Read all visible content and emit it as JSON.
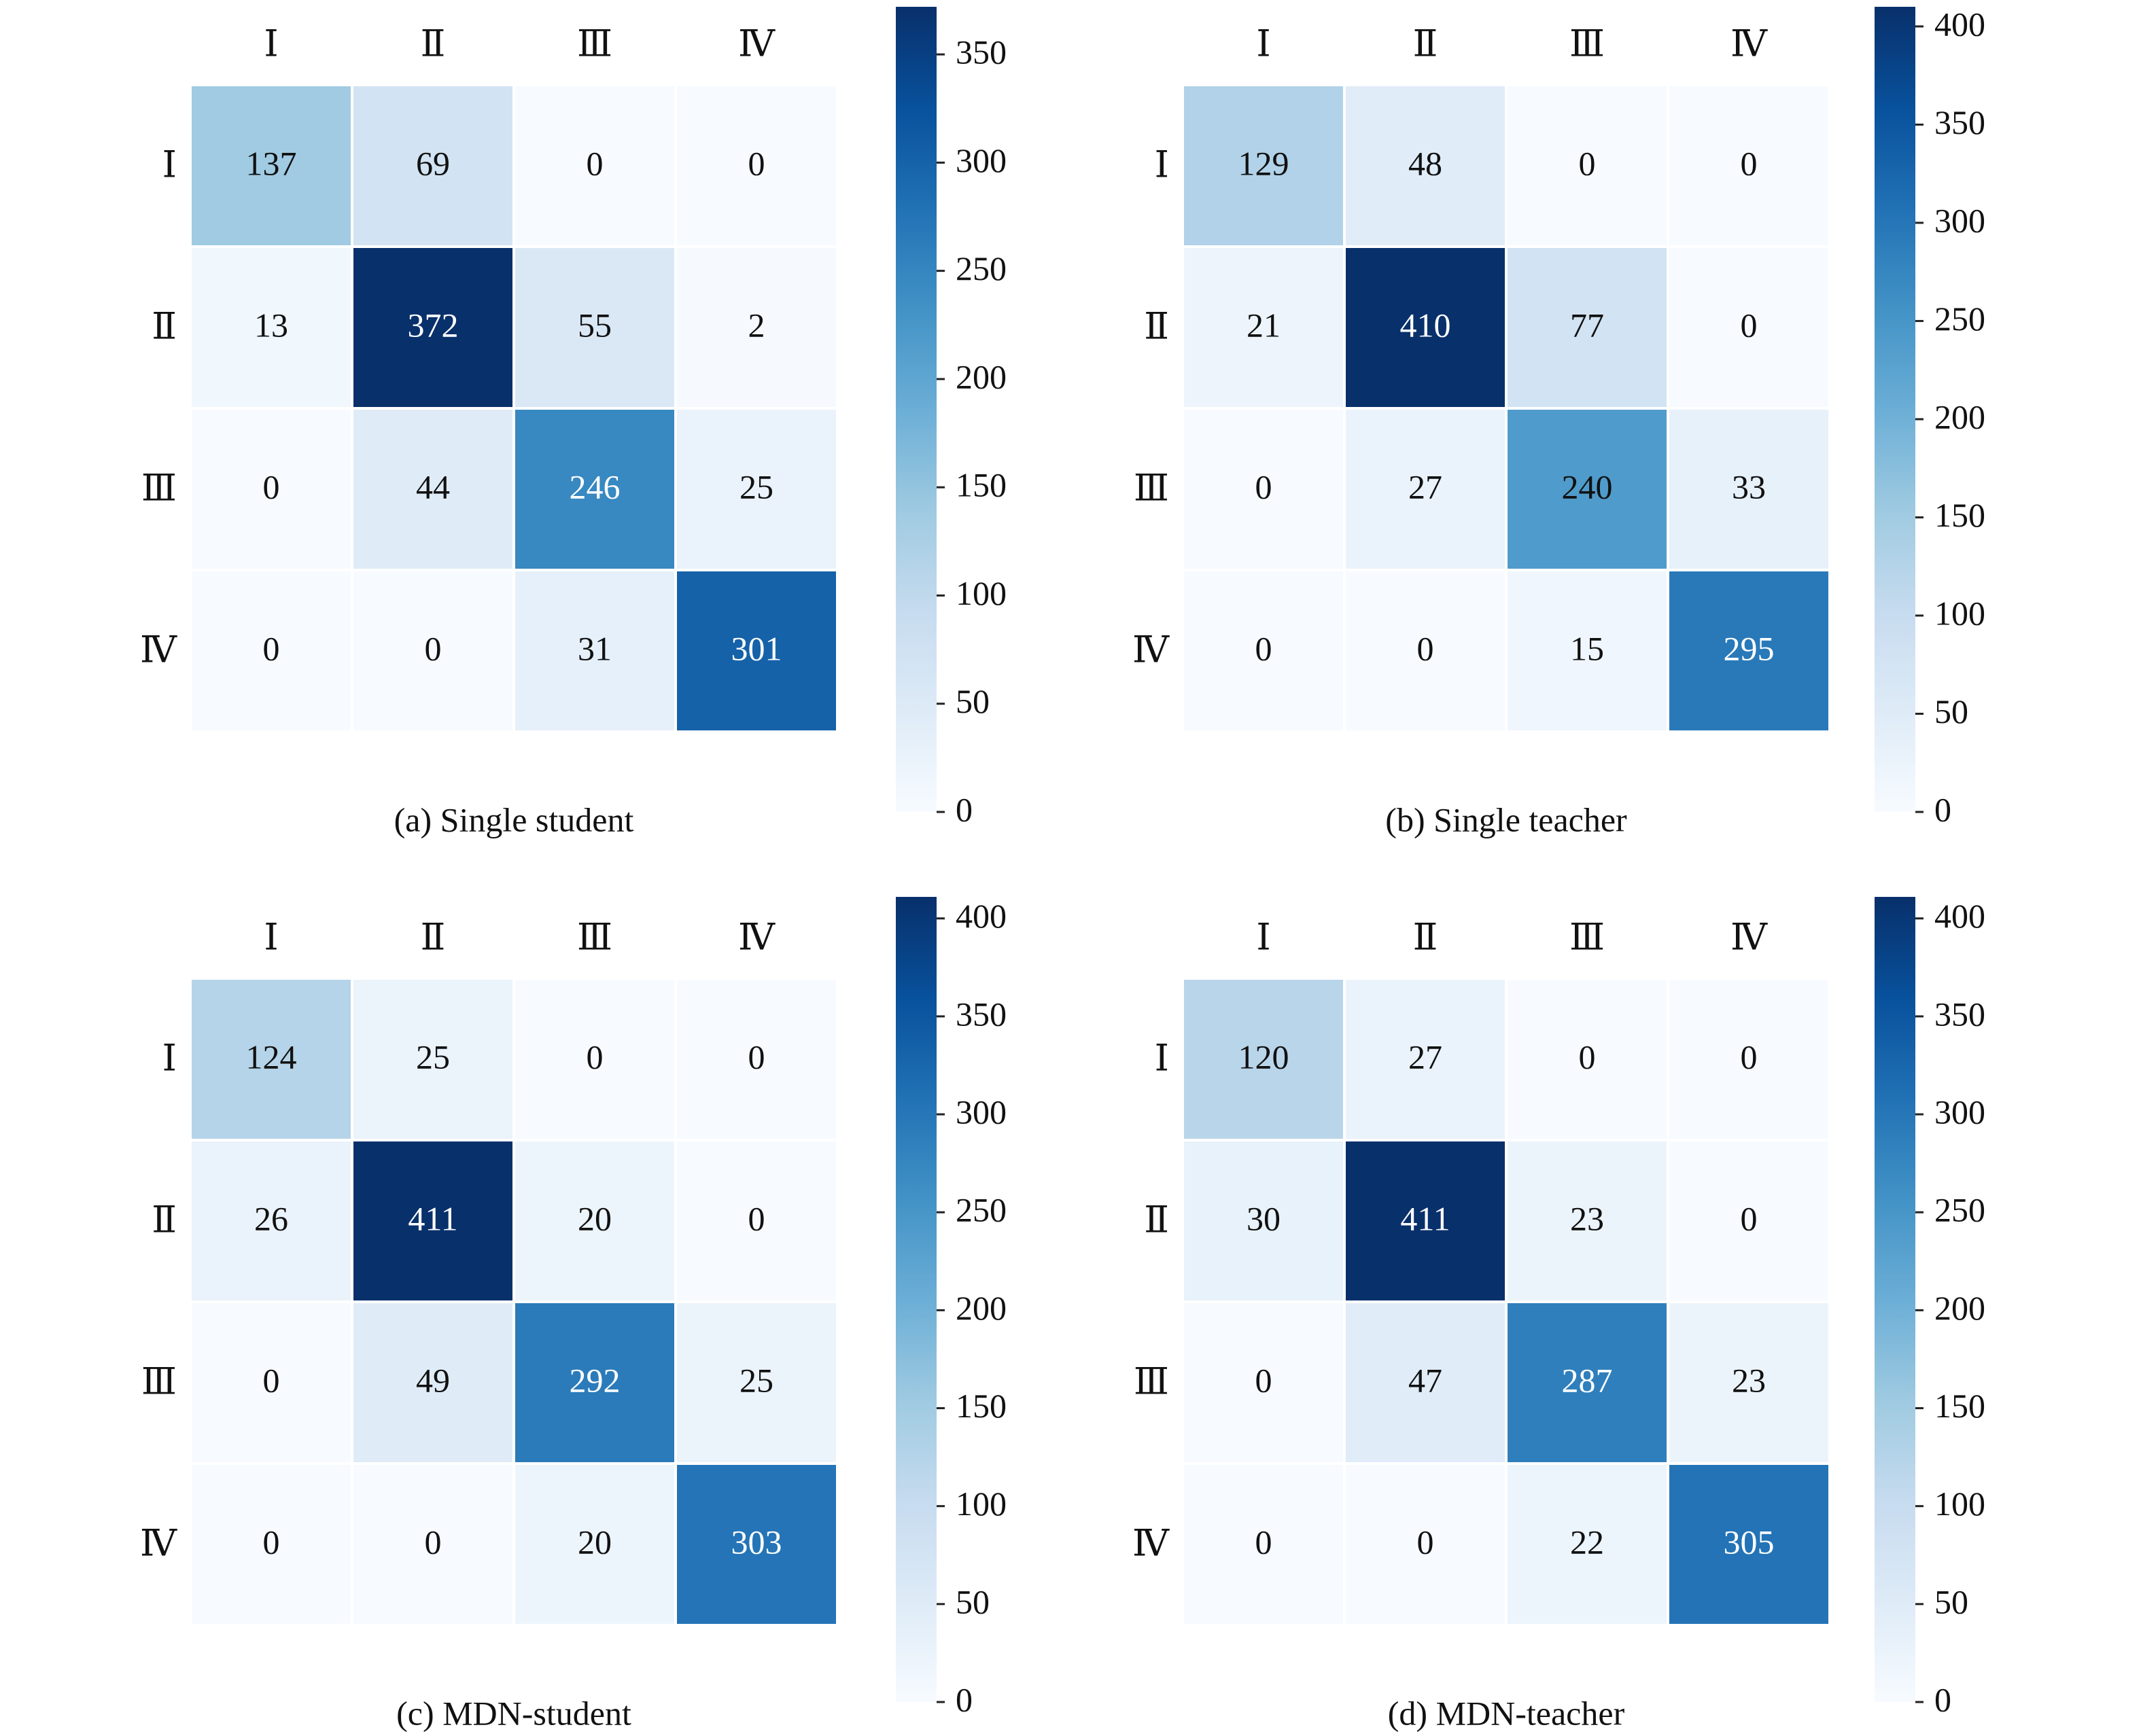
{
  "chart_data": [
    {
      "type": "heatmap",
      "caption": "(a) Single student",
      "row_labels": [
        "Ⅰ",
        "Ⅱ",
        "Ⅲ",
        "Ⅳ"
      ],
      "col_labels": [
        "Ⅰ",
        "Ⅱ",
        "Ⅲ",
        "Ⅳ"
      ],
      "values": [
        [
          137,
          69,
          0,
          0
        ],
        [
          13,
          372,
          55,
          2
        ],
        [
          0,
          44,
          246,
          25
        ],
        [
          0,
          0,
          31,
          301
        ]
      ],
      "colorbar": {
        "min": 0,
        "max": 372,
        "ticks": [
          0,
          50,
          100,
          150,
          200,
          250,
          300,
          350
        ]
      },
      "colormap": "Blues"
    },
    {
      "type": "heatmap",
      "caption": "(b) Single teacher",
      "row_labels": [
        "Ⅰ",
        "Ⅱ",
        "Ⅲ",
        "Ⅳ"
      ],
      "col_labels": [
        "Ⅰ",
        "Ⅱ",
        "Ⅲ",
        "Ⅳ"
      ],
      "values": [
        [
          129,
          48,
          0,
          0
        ],
        [
          21,
          410,
          77,
          0
        ],
        [
          0,
          27,
          240,
          33
        ],
        [
          0,
          0,
          15,
          295
        ]
      ],
      "colorbar": {
        "min": 0,
        "max": 410,
        "ticks": [
          0,
          50,
          100,
          150,
          200,
          250,
          300,
          350,
          400
        ]
      },
      "colormap": "Blues"
    },
    {
      "type": "heatmap",
      "caption": "(c) MDN-student",
      "row_labels": [
        "Ⅰ",
        "Ⅱ",
        "Ⅲ",
        "Ⅳ"
      ],
      "col_labels": [
        "Ⅰ",
        "Ⅱ",
        "Ⅲ",
        "Ⅳ"
      ],
      "values": [
        [
          124,
          25,
          0,
          0
        ],
        [
          26,
          411,
          20,
          0
        ],
        [
          0,
          49,
          292,
          25
        ],
        [
          0,
          0,
          20,
          303
        ]
      ],
      "colorbar": {
        "min": 0,
        "max": 411,
        "ticks": [
          0,
          50,
          100,
          150,
          200,
          250,
          300,
          350,
          400
        ]
      },
      "colormap": "Blues"
    },
    {
      "type": "heatmap",
      "caption": "(d) MDN-teacher",
      "row_labels": [
        "Ⅰ",
        "Ⅱ",
        "Ⅲ",
        "Ⅳ"
      ],
      "col_labels": [
        "Ⅰ",
        "Ⅱ",
        "Ⅲ",
        "Ⅳ"
      ],
      "values": [
        [
          120,
          27,
          0,
          0
        ],
        [
          30,
          411,
          23,
          0
        ],
        [
          0,
          47,
          287,
          23
        ],
        [
          0,
          0,
          22,
          305
        ]
      ],
      "colorbar": {
        "min": 0,
        "max": 411,
        "ticks": [
          0,
          50,
          100,
          150,
          200,
          250,
          300,
          350,
          400
        ]
      },
      "colormap": "Blues"
    }
  ]
}
